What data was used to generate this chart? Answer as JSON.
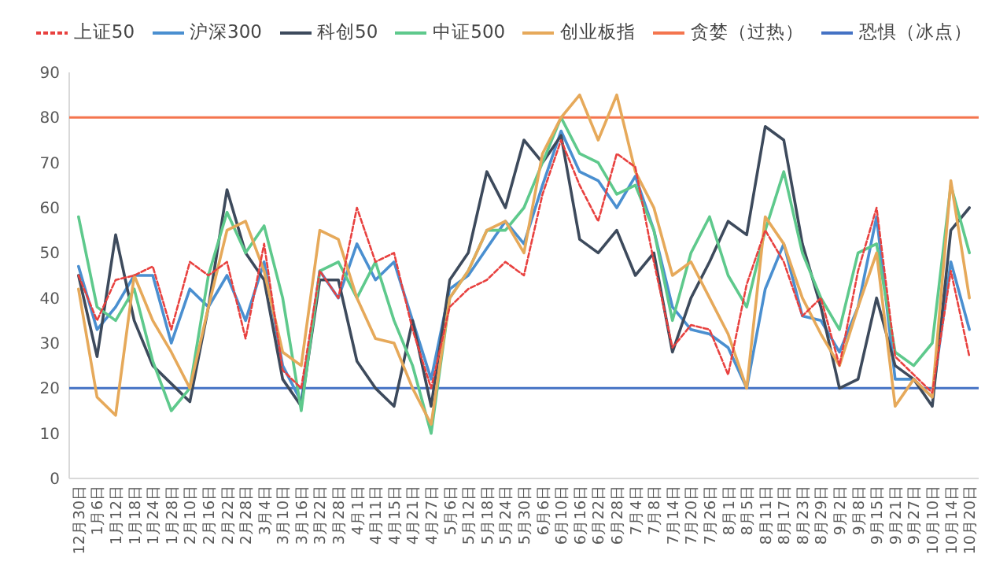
{
  "chart_data": {
    "type": "line",
    "categories": [
      "12月30日",
      "1月6日",
      "1月12日",
      "1月18日",
      "1月24日",
      "1月28日",
      "2月10日",
      "2月16日",
      "2月22日",
      "2月28日",
      "3月4日",
      "3月10日",
      "3月16日",
      "3月22日",
      "3月28日",
      "4月1日",
      "4月11日",
      "4月15日",
      "4月21日",
      "4月27日",
      "5月6日",
      "5月12日",
      "5月18日",
      "5月24日",
      "5月30日",
      "6月6日",
      "6月10日",
      "6月16日",
      "6月22日",
      "6月28日",
      "7月4日",
      "7月8日",
      "7月14日",
      "7月20日",
      "7月26日",
      "8月1日",
      "8月5日",
      "8月11日",
      "8月17日",
      "8月23日",
      "8月29日",
      "9月2日",
      "9月8日",
      "9月15日",
      "9月21日",
      "9月27日",
      "10月10日",
      "10月14日",
      "10月20日"
    ],
    "series": [
      {
        "name": "上证50",
        "color": "#e8413f",
        "line_style": "dashed",
        "values": [
          45,
          35,
          44,
          45,
          47,
          33,
          48,
          45,
          48,
          31,
          52,
          24,
          20,
          46,
          40,
          60,
          48,
          50,
          33,
          20,
          38,
          42,
          44,
          48,
          45,
          63,
          75,
          65,
          57,
          72,
          69,
          48,
          29,
          34,
          33,
          23,
          43,
          55,
          48,
          36,
          40,
          25,
          46,
          60,
          27,
          23,
          19,
          46,
          27
        ]
      },
      {
        "name": "沪深300",
        "color": "#4a8fd0",
        "values": [
          47,
          33,
          38,
          45,
          45,
          30,
          42,
          38,
          45,
          35,
          48,
          25,
          17,
          46,
          40,
          52,
          44,
          48,
          35,
          22,
          42,
          45,
          51,
          57,
          52,
          65,
          77,
          68,
          66,
          60,
          67,
          55,
          38,
          33,
          32,
          29,
          20,
          42,
          52,
          36,
          35,
          28,
          38,
          58,
          22,
          22,
          18,
          48,
          33
        ]
      },
      {
        "name": "科创50",
        "color": "#3d4a5c",
        "values": [
          45,
          27,
          54,
          35,
          25,
          21,
          17,
          38,
          64,
          50,
          44,
          22,
          16,
          44,
          44,
          26,
          20,
          16,
          35,
          16,
          44,
          50,
          68,
          60,
          75,
          70,
          76,
          53,
          50,
          55,
          45,
          50,
          28,
          40,
          48,
          57,
          54,
          78,
          75,
          52,
          38,
          20,
          22,
          40,
          25,
          22,
          16,
          55,
          60
        ]
      },
      {
        "name": "中证500",
        "color": "#5ec98c",
        "values": [
          58,
          38,
          35,
          42,
          26,
          15,
          20,
          45,
          59,
          50,
          56,
          40,
          15,
          46,
          48,
          40,
          48,
          35,
          25,
          10,
          40,
          46,
          55,
          55,
          60,
          70,
          80,
          72,
          70,
          63,
          65,
          55,
          35,
          50,
          58,
          45,
          38,
          55,
          68,
          50,
          40,
          33,
          50,
          52,
          28,
          25,
          30,
          65,
          50
        ]
      },
      {
        "name": "创业板指",
        "color": "#e6a95a",
        "values": [
          42,
          18,
          14,
          45,
          35,
          28,
          20,
          38,
          55,
          57,
          46,
          28,
          25,
          55,
          53,
          40,
          31,
          30,
          20,
          12,
          40,
          46,
          55,
          57,
          50,
          72,
          80,
          85,
          75,
          85,
          68,
          60,
          45,
          48,
          40,
          32,
          20,
          58,
          52,
          40,
          32,
          25,
          38,
          50,
          16,
          22,
          18,
          66,
          40
        ]
      }
    ],
    "ref_lines": [
      {
        "axis": "y",
        "value": 80,
        "label": "贪婪（过热）",
        "color": "#f4754e"
      },
      {
        "axis": "y",
        "value": 20,
        "label": "恐惧（冰点）",
        "color": "#4472c4"
      }
    ],
    "ylim": [
      0,
      90
    ],
    "yticks": [
      0,
      10,
      20,
      30,
      40,
      50,
      60,
      70,
      80,
      90
    ],
    "legend": "top",
    "grid": false,
    "marker": "none"
  }
}
